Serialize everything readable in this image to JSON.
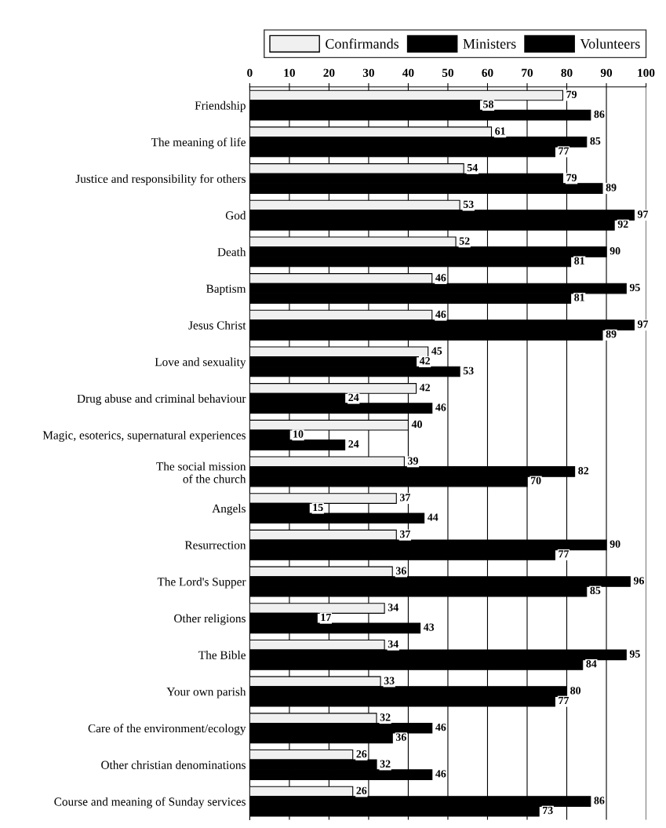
{
  "chart_data": {
    "type": "bar",
    "orientation": "horizontal",
    "categories": [
      "Friendship",
      "The meaning of life",
      "Justice and responsibility for others",
      "God",
      "Death",
      "Baptism",
      "Jesus Christ",
      "Love and sexuality",
      "Drug abuse and criminal behaviour",
      "Magic, esoterics, supernatural experiences",
      "The social mission\nof the church",
      "Angels",
      "Resurrection",
      "The Lord's Supper",
      "Other religions",
      "The Bible",
      "Your own parish",
      "Care of the environment/ecology",
      "Other christian denominations",
      "Course and meaning of Sunday services"
    ],
    "series": [
      {
        "name": "Confirmands",
        "color": "#f0f0f0",
        "values": [
          79,
          61,
          54,
          53,
          52,
          46,
          46,
          45,
          42,
          40,
          39,
          37,
          37,
          36,
          34,
          34,
          33,
          32,
          26,
          26
        ]
      },
      {
        "name": "Ministers",
        "color": "#000000",
        "values": [
          58,
          85,
          79,
          97,
          90,
          95,
          97,
          42,
          24,
          10,
          82,
          15,
          90,
          96,
          17,
          95,
          80,
          46,
          32,
          86
        ]
      },
      {
        "name": "Volunteers",
        "color": "#000000",
        "values": [
          86,
          77,
          89,
          92,
          81,
          81,
          89,
          53,
          46,
          24,
          70,
          44,
          77,
          85,
          43,
          84,
          77,
          36,
          46,
          73
        ]
      }
    ],
    "xlim": [
      0,
      100
    ],
    "xticks": [
      0,
      10,
      20,
      30,
      40,
      50,
      60,
      70,
      80,
      90,
      100
    ],
    "data_labels": true,
    "grid": "x",
    "legend": "top right"
  }
}
